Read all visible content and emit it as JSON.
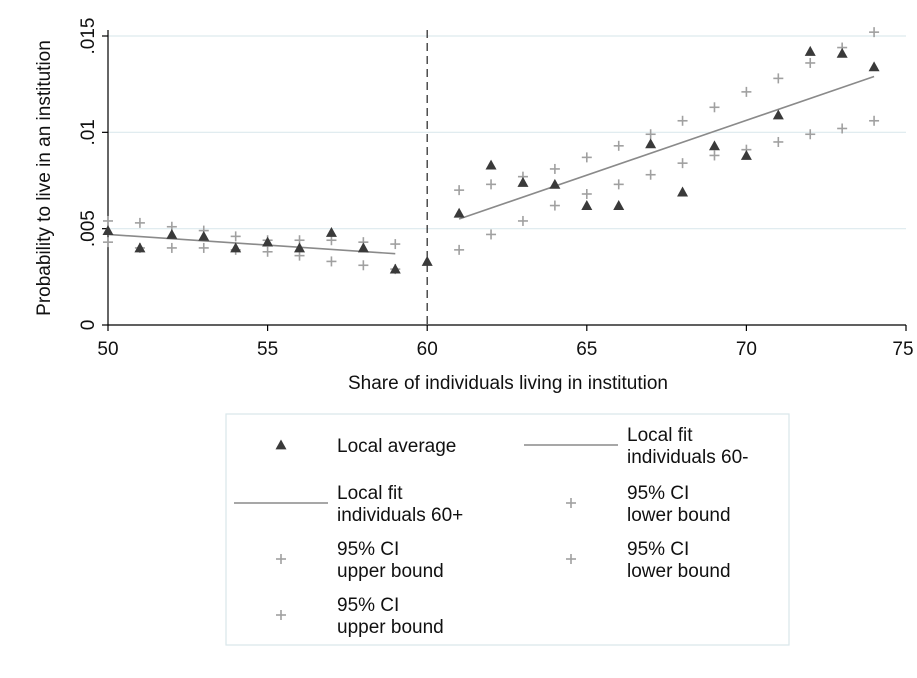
{
  "chart_data": {
    "type": "scatter",
    "title": "",
    "xlabel": "Share of individuals living in institution",
    "ylabel": "Probability to live in an institution",
    "xlim": [
      50,
      75
    ],
    "ylim": [
      0,
      0.015
    ],
    "x_ticks": [
      50,
      55,
      60,
      65,
      70,
      75
    ],
    "x_tick_labels": [
      "50",
      "55",
      "60",
      "65",
      "70",
      "75"
    ],
    "y_ticks": [
      0,
      0.005,
      0.01,
      0.015
    ],
    "y_tick_labels": [
      "0",
      ".005",
      ".01",
      ".015"
    ],
    "grid": "horizontal",
    "cutoff": 60,
    "legend_position": "bottom",
    "series": [
      {
        "name": "Local average",
        "kind": "markers",
        "marker": "triangle",
        "color": "#3a3a3a",
        "x": [
          50,
          51,
          52,
          53,
          54,
          55,
          56,
          57,
          58,
          59,
          60,
          61,
          62,
          63,
          64,
          65,
          66,
          67,
          68,
          69,
          70,
          71,
          72,
          73,
          74
        ],
        "y": [
          0.0049,
          0.004,
          0.0047,
          0.0046,
          0.004,
          0.0043,
          0.004,
          0.0048,
          0.004,
          0.0029,
          0.0033,
          0.0058,
          0.0083,
          0.0074,
          0.0073,
          0.0062,
          0.0062,
          0.0094,
          0.0069,
          0.0093,
          0.0088,
          0.0109,
          0.0142,
          0.0141,
          0.0134
        ]
      },
      {
        "name": "Local fit individuals 60-",
        "kind": "line",
        "color": "#8a8a8a",
        "x": [
          50,
          59
        ],
        "y": [
          0.0047,
          0.0037
        ]
      },
      {
        "name": "Local fit individuals 60+",
        "kind": "line",
        "color": "#8a8a8a",
        "x": [
          61,
          74
        ],
        "y": [
          0.0055,
          0.0129
        ]
      },
      {
        "name": "95% CI lower bound",
        "kind": "markers",
        "marker": "plus",
        "color": "#a0a0a0",
        "x": [
          50,
          51,
          52,
          53,
          54,
          55,
          56,
          57,
          58,
          59
        ],
        "y": [
          0.0043,
          0.004,
          0.004,
          0.004,
          0.0039,
          0.0038,
          0.0036,
          0.0033,
          0.0031,
          0.0029
        ]
      },
      {
        "name": "95% CI upper bound",
        "kind": "markers",
        "marker": "plus",
        "color": "#a0a0a0",
        "x": [
          50,
          51,
          52,
          53,
          54,
          55,
          56,
          57,
          58,
          59
        ],
        "y": [
          0.0054,
          0.0053,
          0.0051,
          0.0049,
          0.0046,
          0.0044,
          0.0044,
          0.0044,
          0.0043,
          0.0042
        ]
      },
      {
        "name": "95% CI lower bound",
        "kind": "markers",
        "marker": "plus",
        "color": "#a0a0a0",
        "x": [
          61,
          62,
          63,
          64,
          65,
          66,
          67,
          68,
          69,
          70,
          71,
          72,
          73,
          74
        ],
        "y": [
          0.0039,
          0.0047,
          0.0054,
          0.0062,
          0.0068,
          0.0073,
          0.0078,
          0.0084,
          0.0088,
          0.0091,
          0.0095,
          0.0099,
          0.0102,
          0.0106
        ]
      },
      {
        "name": "95% CI upper bound",
        "kind": "markers",
        "marker": "plus",
        "color": "#a0a0a0",
        "x": [
          61,
          62,
          63,
          64,
          65,
          66,
          67,
          68,
          69,
          70,
          71,
          72,
          73,
          74
        ],
        "y": [
          0.007,
          0.0073,
          0.0077,
          0.0081,
          0.0087,
          0.0093,
          0.0099,
          0.0106,
          0.0113,
          0.0121,
          0.0128,
          0.0136,
          0.0144,
          0.0152
        ]
      }
    ],
    "legend": [
      {
        "lines": [
          "Local average"
        ],
        "marker": "triangle",
        "color": "#3a3a3a"
      },
      {
        "lines": [
          "Local fit",
          "individuals 60-"
        ],
        "marker": "line",
        "color": "#8a8a8a"
      },
      {
        "lines": [
          "Local fit",
          "individuals 60+"
        ],
        "marker": "line",
        "color": "#8a8a8a"
      },
      {
        "lines": [
          "95% CI",
          "lower bound"
        ],
        "marker": "plus",
        "color": "#a0a0a0"
      },
      {
        "lines": [
          "95% CI",
          "upper bound"
        ],
        "marker": "plus",
        "color": "#a0a0a0"
      },
      {
        "lines": [
          "95% CI",
          "lower bound"
        ],
        "marker": "plus",
        "color": "#a0a0a0"
      },
      {
        "lines": [
          "95% CI",
          "upper bound"
        ],
        "marker": "plus",
        "color": "#a0a0a0"
      }
    ]
  }
}
